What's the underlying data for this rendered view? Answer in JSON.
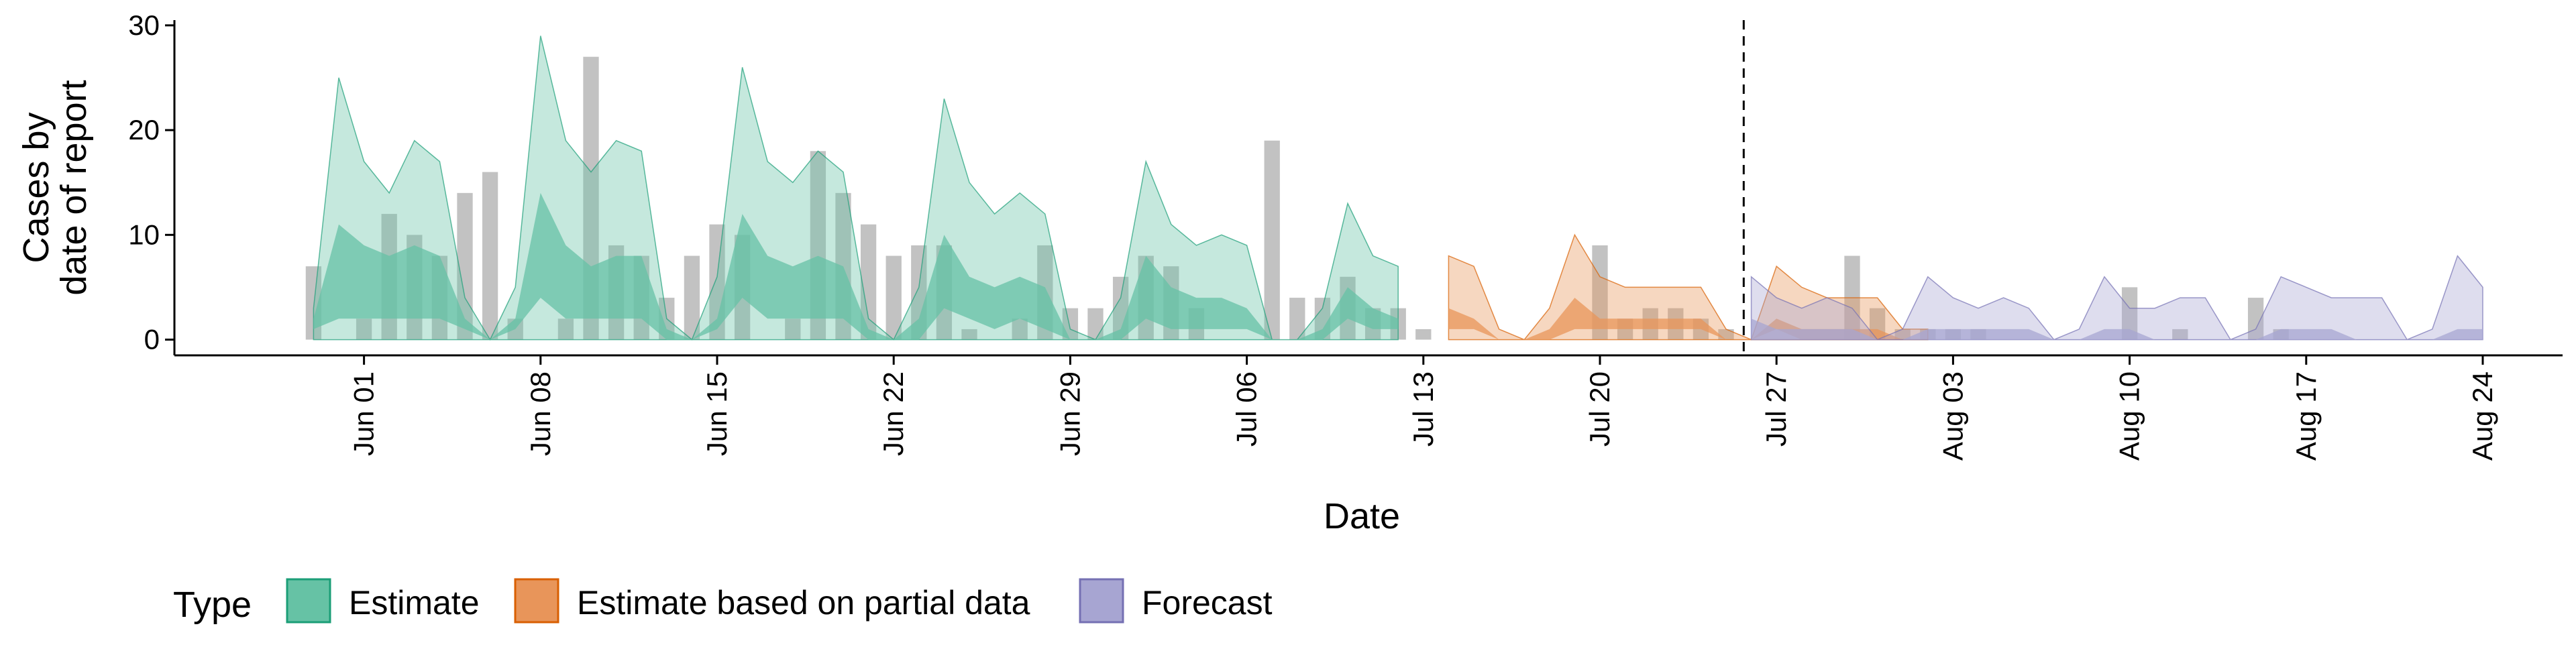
{
  "chart_data": {
    "type": "area",
    "xlabel": "Date",
    "ylabel_lines": [
      "Cases by",
      "date of report"
    ],
    "y_ticks": [
      0,
      10,
      20,
      30
    ],
    "ylim": [
      -1.5,
      30.5
    ],
    "x_ticks": [
      {
        "label": "Jun 01",
        "day": 1
      },
      {
        "label": "Jun 08",
        "day": 8
      },
      {
        "label": "Jun 15",
        "day": 15
      },
      {
        "label": "Jun 22",
        "day": 22
      },
      {
        "label": "Jun 29",
        "day": 29
      },
      {
        "label": "Jul 06",
        "day": 36
      },
      {
        "label": "Jul 13",
        "day": 43
      },
      {
        "label": "Jul 20",
        "day": 50
      },
      {
        "label": "Jul 27",
        "day": 57
      },
      {
        "label": "Aug 03",
        "day": 64
      },
      {
        "label": "Aug 10",
        "day": 71
      },
      {
        "label": "Aug 17",
        "day": 78
      },
      {
        "label": "Aug 24",
        "day": 85
      }
    ],
    "xlim": [
      -7,
      88
    ],
    "forecast_start_day": 55.7,
    "legend": {
      "title": "Type",
      "position": "bottom",
      "items": [
        {
          "label": "Estimate",
          "fill": "#66c2a5",
          "stroke": "#1b9e77"
        },
        {
          "label": "Estimate based on partial data",
          "fill": "#e8955a",
          "stroke": "#d95f02"
        },
        {
          "label": "Forecast",
          "fill": "#a7a5d2",
          "stroke": "#7570b3"
        }
      ]
    },
    "reported_cases": {
      "color": "#9a9a9a",
      "start_day": 0,
      "values": [
        7,
        0,
        2,
        12,
        10,
        8,
        14,
        16,
        2,
        0,
        2,
        27,
        9,
        8,
        4,
        8,
        11,
        10,
        0,
        2,
        18,
        14,
        11,
        8,
        9,
        9,
        1,
        0,
        2,
        9,
        3,
        3,
        6,
        8,
        7,
        3,
        0,
        0,
        19,
        4,
        4,
        6,
        3,
        3,
        1,
        0,
        0,
        0,
        0,
        0,
        0,
        9,
        2,
        3,
        3,
        2,
        1,
        0,
        0,
        0,
        0,
        8,
        3,
        1,
        1,
        1,
        1,
        0,
        0,
        0,
        0,
        0,
        5,
        0,
        1,
        0,
        0,
        4,
        1,
        0,
        0
      ]
    },
    "series": [
      {
        "name": "Estimate",
        "start_day": 0,
        "fill": "#66c2a5",
        "stroke": "#1b9e77",
        "upper90": [
          3,
          25,
          17,
          14,
          19,
          17,
          4,
          0,
          5,
          29,
          19,
          16,
          19,
          18,
          2,
          0,
          6,
          26,
          17,
          15,
          18,
          16,
          2,
          0,
          5,
          23,
          15,
          12,
          14,
          12,
          1,
          0,
          4,
          17,
          11,
          9,
          10,
          9,
          0,
          0,
          3,
          13,
          8,
          7
        ],
        "upper50": [
          2,
          11,
          9,
          8,
          9,
          8,
          2,
          0,
          2,
          14,
          9,
          7,
          8,
          8,
          1,
          0,
          2,
          12,
          8,
          7,
          8,
          7,
          1,
          0,
          2,
          10,
          6,
          5,
          6,
          5,
          0,
          0,
          1,
          8,
          5,
          4,
          4,
          3,
          0,
          0,
          1,
          5,
          3,
          2
        ],
        "lower50": [
          1,
          2,
          2,
          2,
          2,
          2,
          1,
          0,
          1,
          4,
          2,
          2,
          2,
          2,
          0,
          0,
          1,
          4,
          2,
          2,
          2,
          2,
          0,
          0,
          0,
          3,
          2,
          1,
          2,
          1,
          0,
          0,
          0,
          2,
          1,
          1,
          1,
          1,
          0,
          0,
          0,
          2,
          1,
          1
        ],
        "lower90": [
          0,
          0,
          0,
          0,
          0,
          0,
          0,
          0,
          0,
          0,
          0,
          0,
          0,
          0,
          0,
          0,
          0,
          0,
          0,
          0,
          0,
          0,
          0,
          0,
          0,
          0,
          0,
          0,
          0,
          0,
          0,
          0,
          0,
          0,
          0,
          0,
          0,
          0,
          0,
          0,
          0,
          0,
          0,
          0
        ]
      },
      {
        "name": "Estimate based on partial data",
        "start_day": 45,
        "fill": "#e8955a",
        "stroke": "#d95f02",
        "upper90": [
          8,
          7,
          1,
          0,
          3,
          10,
          6,
          5,
          5,
          5,
          5,
          1,
          0,
          7,
          5,
          4,
          4,
          4,
          1,
          1
        ],
        "upper50": [
          3,
          2,
          0,
          0,
          1,
          4,
          2,
          2,
          2,
          2,
          2,
          0,
          0,
          2,
          1,
          1,
          1,
          1,
          0,
          0
        ],
        "lower50": [
          1,
          1,
          0,
          0,
          0,
          1,
          1,
          1,
          1,
          1,
          1,
          0,
          0,
          1,
          0,
          0,
          0,
          0,
          0,
          0
        ],
        "lower90": [
          0,
          0,
          0,
          0,
          0,
          0,
          0,
          0,
          0,
          0,
          0,
          0,
          0,
          0,
          0,
          0,
          0,
          0,
          0,
          0
        ],
        "_day_offset_note": ""
      },
      {
        "name": "Forecast",
        "start_day": 57,
        "fill": "#a7a5d2",
        "stroke": "#7570b3",
        "upper90": [
          6,
          4,
          3,
          4,
          3,
          0,
          1,
          6,
          4,
          3,
          4,
          3,
          0,
          1,
          6,
          3,
          3,
          4,
          4,
          0,
          1,
          6,
          5,
          4,
          4,
          4,
          0,
          1,
          8,
          5
        ],
        "upper50": [
          2,
          1,
          1,
          1,
          1,
          0,
          0,
          1,
          1,
          1,
          1,
          1,
          0,
          0,
          1,
          1,
          0,
          0,
          0,
          0,
          0,
          1,
          1,
          1,
          0,
          0,
          0,
          0,
          1,
          1
        ],
        "lower50": [
          0,
          0,
          0,
          0,
          0,
          0,
          0,
          0,
          0,
          0,
          0,
          0,
          0,
          0,
          0,
          0,
          0,
          0,
          0,
          0,
          0,
          0,
          0,
          0,
          0,
          0,
          0,
          0,
          0,
          0
        ],
        "lower90": [
          0,
          0,
          0,
          0,
          0,
          0,
          0,
          0,
          0,
          0,
          0,
          0,
          0,
          0,
          0,
          0,
          0,
          0,
          0,
          0,
          0,
          0,
          0,
          0,
          0,
          0,
          0,
          0,
          0,
          0
        ]
      }
    ]
  }
}
